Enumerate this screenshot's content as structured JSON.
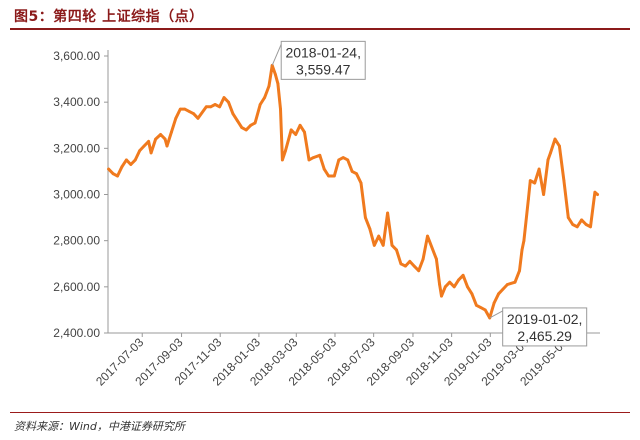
{
  "figure": {
    "title": "图5：第四轮 上证综指（点）",
    "source": "资料来源：Wind，中港证券研究所"
  },
  "colors": {
    "line": "#F07A1E",
    "title": "#8B1A1A",
    "axis": "#999999"
  },
  "chart_data": {
    "type": "line",
    "title": "",
    "xlabel": "",
    "ylabel": "",
    "ylim": [
      2400,
      3600
    ],
    "xlim": [
      "2017-05-10",
      "2019-06-25"
    ],
    "y_ticks": [
      "3,600.00",
      "3,400.00",
      "3,200.00",
      "3,000.00",
      "2,800.00",
      "2,600.00",
      "2,400.00"
    ],
    "y_tick_values": [
      3600,
      3400,
      3200,
      3000,
      2800,
      2600,
      2400
    ],
    "x_ticks": [
      "2017-07-03",
      "2017-09-03",
      "2017-11-03",
      "2018-01-03",
      "2018-03-03",
      "2018-05-03",
      "2018-07-03",
      "2018-09-03",
      "2018-11-03",
      "2019-01-03",
      "2019-03-03",
      "2019-05-03"
    ],
    "grid": false,
    "legend": "none",
    "series": [
      {
        "x": [
          "2017-05-11",
          "2017-05-18",
          "2017-05-25",
          "2017-06-01",
          "2017-06-08",
          "2017-06-15",
          "2017-06-22",
          "2017-06-29",
          "2017-07-06",
          "2017-07-13",
          "2017-07-17",
          "2017-07-24",
          "2017-08-01",
          "2017-08-08",
          "2017-08-11",
          "2017-08-18",
          "2017-08-25",
          "2017-09-01",
          "2017-09-08",
          "2017-09-15",
          "2017-09-22",
          "2017-09-29",
          "2017-10-12",
          "2017-10-19",
          "2017-10-26",
          "2017-11-02",
          "2017-11-09",
          "2017-11-16",
          "2017-11-23",
          "2017-11-30",
          "2017-12-07",
          "2017-12-14",
          "2017-12-21",
          "2017-12-28",
          "2018-01-05",
          "2018-01-12",
          "2018-01-19",
          "2018-01-24",
          "2018-01-29",
          "2018-02-02",
          "2018-02-06",
          "2018-02-09",
          "2018-02-14",
          "2018-02-23",
          "2018-03-02",
          "2018-03-09",
          "2018-03-16",
          "2018-03-23",
          "2018-03-30",
          "2018-04-09",
          "2018-04-16",
          "2018-04-23",
          "2018-05-02",
          "2018-05-09",
          "2018-05-16",
          "2018-05-23",
          "2018-05-30",
          "2018-06-06",
          "2018-06-13",
          "2018-06-20",
          "2018-06-27",
          "2018-07-04",
          "2018-07-11",
          "2018-07-18",
          "2018-07-25",
          "2018-08-01",
          "2018-08-08",
          "2018-08-15",
          "2018-08-22",
          "2018-08-29",
          "2018-09-05",
          "2018-09-12",
          "2018-09-19",
          "2018-09-26",
          "2018-10-10",
          "2018-10-15",
          "2018-10-18",
          "2018-10-24",
          "2018-10-31",
          "2018-11-07",
          "2018-11-14",
          "2018-11-21",
          "2018-11-28",
          "2018-12-05",
          "2018-12-12",
          "2018-12-19",
          "2018-12-26",
          "2019-01-02",
          "2019-01-09",
          "2019-01-16",
          "2019-01-23",
          "2019-01-30",
          "2019-02-11",
          "2019-02-18",
          "2019-02-22",
          "2019-02-25",
          "2019-03-04",
          "2019-03-07",
          "2019-03-14",
          "2019-03-21",
          "2019-03-28",
          "2019-04-04",
          "2019-04-08",
          "2019-04-15",
          "2019-04-22",
          "2019-04-29",
          "2019-05-06",
          "2019-05-13",
          "2019-05-20",
          "2019-05-27",
          "2019-06-03",
          "2019-06-10",
          "2019-06-17",
          "2019-06-21"
        ],
        "values": [
          3110,
          3090,
          3080,
          3120,
          3150,
          3130,
          3150,
          3190,
          3210,
          3230,
          3180,
          3240,
          3260,
          3240,
          3210,
          3270,
          3330,
          3370,
          3370,
          3360,
          3350,
          3330,
          3380,
          3380,
          3390,
          3380,
          3420,
          3400,
          3350,
          3320,
          3290,
          3280,
          3300,
          3310,
          3390,
          3420,
          3470,
          3559.47,
          3520,
          3480,
          3370,
          3150,
          3190,
          3280,
          3260,
          3300,
          3270,
          3150,
          3160,
          3170,
          3110,
          3080,
          3080,
          3150,
          3160,
          3150,
          3100,
          3090,
          3050,
          2900,
          2850,
          2780,
          2820,
          2780,
          2920,
          2780,
          2760,
          2700,
          2690,
          2710,
          2690,
          2670,
          2720,
          2820,
          2720,
          2610,
          2560,
          2600,
          2620,
          2600,
          2630,
          2650,
          2600,
          2570,
          2520,
          2510,
          2500,
          2465.29,
          2530,
          2570,
          2590,
          2610,
          2620,
          2670,
          2760,
          2800,
          2980,
          3060,
          3050,
          3110,
          3000,
          3150,
          3180,
          3240,
          3210,
          3060,
          2900,
          2870,
          2860,
          2890,
          2870,
          2860,
          3010,
          3000
        ]
      }
    ],
    "annotations": [
      {
        "date": "2018-01-24",
        "label_line1": "2018-01-24,",
        "label_line2": "3,559.47",
        "value": 3559.47,
        "position": "upper-right"
      },
      {
        "date": "2019-01-02",
        "label_line1": "2019-01-02,",
        "label_line2": "2,465.29",
        "value": 2465.29,
        "position": "lower-right"
      }
    ]
  }
}
